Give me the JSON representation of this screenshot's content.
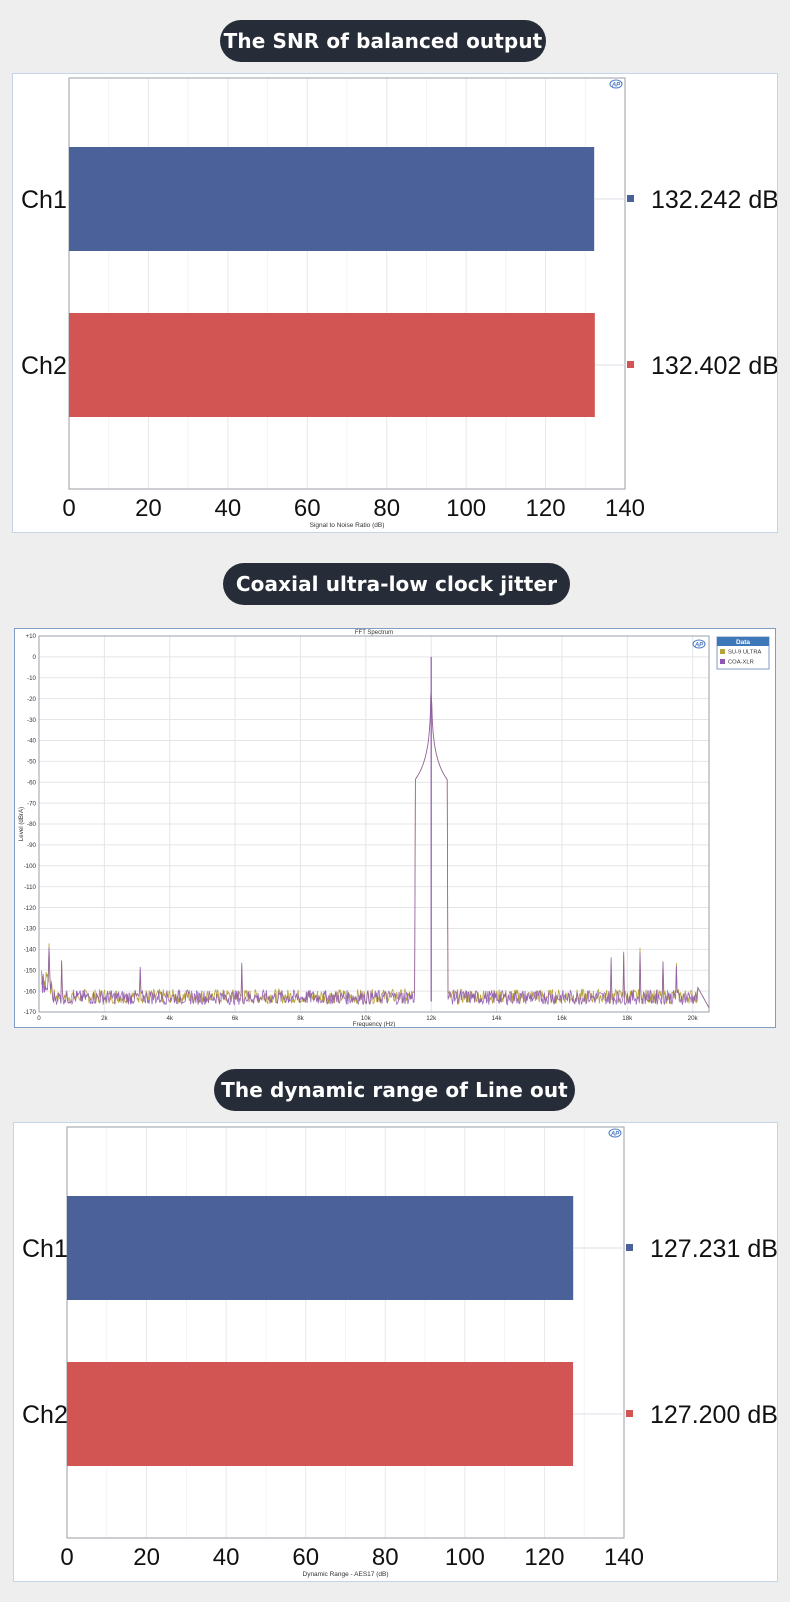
{
  "sections": [
    {
      "heading": "The SNR of balanced output"
    },
    {
      "heading": "Coaxial ultra-low clock jitter"
    },
    {
      "heading": "The dynamic range of Line out"
    }
  ],
  "ap_logo": "AP",
  "colors": {
    "ch1": "#4a6199",
    "ch2": "#d25453",
    "heading_bg": "#272d38",
    "fft_series1": "#b8a23c",
    "fft_series2": "#8e58b4"
  },
  "chart_data": [
    {
      "type": "bar",
      "orientation": "horizontal",
      "title": "",
      "categories": [
        "Ch1",
        "Ch2"
      ],
      "values": [
        132.242,
        132.402
      ],
      "value_labels": [
        "132.242 dB",
        "132.402 dB"
      ],
      "xlabel": "Signal to Noise Ratio (dB)",
      "xlim": [
        0,
        140
      ],
      "xticks": [
        "0",
        "20",
        "40",
        "60",
        "80",
        "100",
        "120",
        "140"
      ],
      "grid": true
    },
    {
      "type": "line",
      "title": "FFT Spectrum",
      "xlabel": "Frequency (Hz)",
      "ylabel": "Level (dBrA)",
      "xlim": [
        0,
        20500
      ],
      "ylim": [
        -170,
        10
      ],
      "xticks": [
        "0",
        "2k",
        "4k",
        "6k",
        "8k",
        "10k",
        "12k",
        "14k",
        "16k",
        "18k",
        "20k"
      ],
      "yticks": [
        "+10",
        "0",
        "-10",
        "-20",
        "-30",
        "-40",
        "-50",
        "-60",
        "-70",
        "-80",
        "-90",
        "-100",
        "-110",
        "-120",
        "-130",
        "-140",
        "-150",
        "-160",
        "-170"
      ],
      "legend_title": "Data",
      "legend_position": "top-right, outside plot",
      "series": [
        {
          "name": "SU-9 ULTRA"
        },
        {
          "name": "COA-XLR"
        }
      ],
      "peak": {
        "x": 12000,
        "y": 0
      },
      "noise_floor": -163,
      "spurs": [
        [
          300,
          -140
        ],
        [
          700,
          -146
        ],
        [
          3100,
          -150
        ],
        [
          6200,
          -149
        ],
        [
          17500,
          -146
        ],
        [
          17900,
          -143
        ],
        [
          18400,
          -142
        ],
        [
          19100,
          -147
        ],
        [
          19500,
          -149
        ]
      ],
      "grid": true
    },
    {
      "type": "bar",
      "orientation": "horizontal",
      "title": "",
      "categories": [
        "Ch1",
        "Ch2"
      ],
      "values": [
        127.231,
        127.2
      ],
      "value_labels": [
        "127.231 dB",
        "127.200 dB"
      ],
      "xlabel": "Dynamic Range - AES17 (dB)",
      "xlim": [
        0,
        140
      ],
      "xticks": [
        "0",
        "20",
        "40",
        "60",
        "80",
        "100",
        "120",
        "140"
      ],
      "grid": true
    }
  ]
}
